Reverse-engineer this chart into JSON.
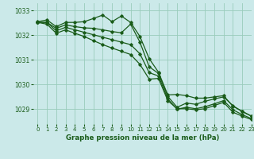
{
  "bg_color": "#cbe9e9",
  "grid_color": "#99ccbb",
  "line_color": "#1a5c1a",
  "title": "Graphe pression niveau de la mer (hPa)",
  "xlim": [
    -0.5,
    23
  ],
  "ylim": [
    1028.4,
    1033.3
  ],
  "yticks": [
    1029,
    1030,
    1031,
    1032,
    1033
  ],
  "xticks": [
    0,
    1,
    2,
    3,
    4,
    5,
    6,
    7,
    8,
    9,
    10,
    11,
    12,
    13,
    14,
    15,
    16,
    17,
    18,
    19,
    20,
    21,
    22,
    23
  ],
  "series": [
    {
      "x": [
        0,
        1,
        2,
        3,
        4,
        5,
        6,
        7,
        8,
        9,
        10,
        11,
        12,
        13,
        14,
        15,
        16,
        17,
        18,
        19,
        20,
        21,
        22,
        23
      ],
      "y": [
        1032.55,
        1032.62,
        1032.35,
        1032.52,
        1032.52,
        1032.55,
        1032.68,
        1032.82,
        1032.55,
        1032.78,
        1032.52,
        1031.95,
        1031.05,
        1030.5,
        1029.58,
        1029.6,
        1029.55,
        1029.45,
        1029.45,
        1029.5,
        1029.55,
        1029.12,
        1028.92,
        1028.72
      ]
    },
    {
      "x": [
        0,
        1,
        2,
        3,
        4,
        5,
        6,
        7,
        8,
        9,
        10,
        11,
        12,
        13,
        14,
        15,
        16,
        17,
        18,
        19,
        20,
        21,
        22,
        23
      ],
      "y": [
        1032.52,
        1032.52,
        1032.28,
        1032.42,
        1032.35,
        1032.3,
        1032.28,
        1032.22,
        1032.15,
        1032.1,
        1032.45,
        1031.72,
        1030.72,
        1030.45,
        1029.52,
        1029.08,
        1029.25,
        1029.2,
        1029.32,
        1029.42,
        1029.5,
        1029.15,
        1028.9,
        1028.72
      ]
    },
    {
      "x": [
        0,
        1,
        2,
        3,
        4,
        5,
        6,
        7,
        8,
        9,
        10,
        11,
        12,
        13,
        14,
        15,
        16,
        17,
        18,
        19,
        20,
        21,
        22,
        23
      ],
      "y": [
        1032.52,
        1032.52,
        1032.18,
        1032.32,
        1032.22,
        1032.12,
        1032.02,
        1031.92,
        1031.82,
        1031.72,
        1031.62,
        1031.25,
        1030.48,
        1030.35,
        1029.42,
        1029.0,
        1029.08,
        1029.02,
        1029.1,
        1029.22,
        1029.35,
        1028.98,
        1028.78,
        1028.62
      ]
    },
    {
      "x": [
        0,
        1,
        2,
        3,
        4,
        5,
        6,
        7,
        8,
        9,
        10,
        11,
        12,
        13,
        14,
        15,
        16,
        17,
        18,
        19,
        20,
        21,
        22,
        23
      ],
      "y": [
        1032.52,
        1032.45,
        1032.08,
        1032.22,
        1032.08,
        1031.95,
        1031.78,
        1031.62,
        1031.48,
        1031.35,
        1031.22,
        1030.82,
        1030.22,
        1030.25,
        1029.35,
        1029.02,
        1029.02,
        1028.98,
        1029.02,
        1029.15,
        1029.28,
        1028.88,
        1028.72,
        1028.58
      ]
    }
  ]
}
